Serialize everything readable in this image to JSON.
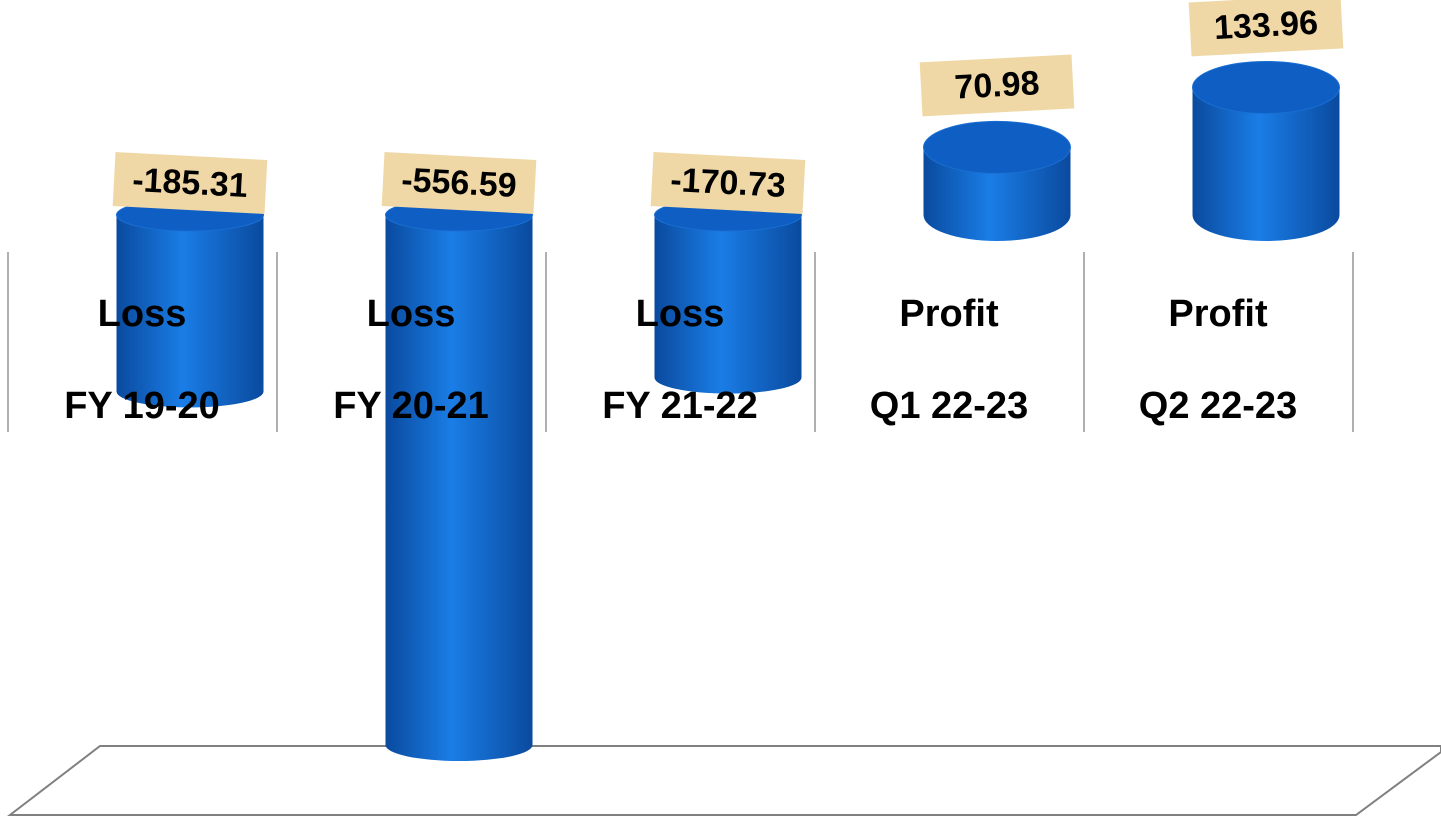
{
  "chart_data": {
    "type": "cylinder",
    "categories": [
      [
        "Loss",
        "FY 19-20"
      ],
      [
        "Loss",
        "FY 20-21"
      ],
      [
        "Loss",
        "FY 21-22"
      ],
      [
        "Profit",
        "Q1 22-23"
      ],
      [
        "Profit",
        "Q2 22-23"
      ]
    ],
    "values": [
      -185.31,
      -556.59,
      -170.73,
      70.98,
      133.96
    ],
    "color": "#1270d6",
    "label_box_color": "#efd8a6"
  }
}
